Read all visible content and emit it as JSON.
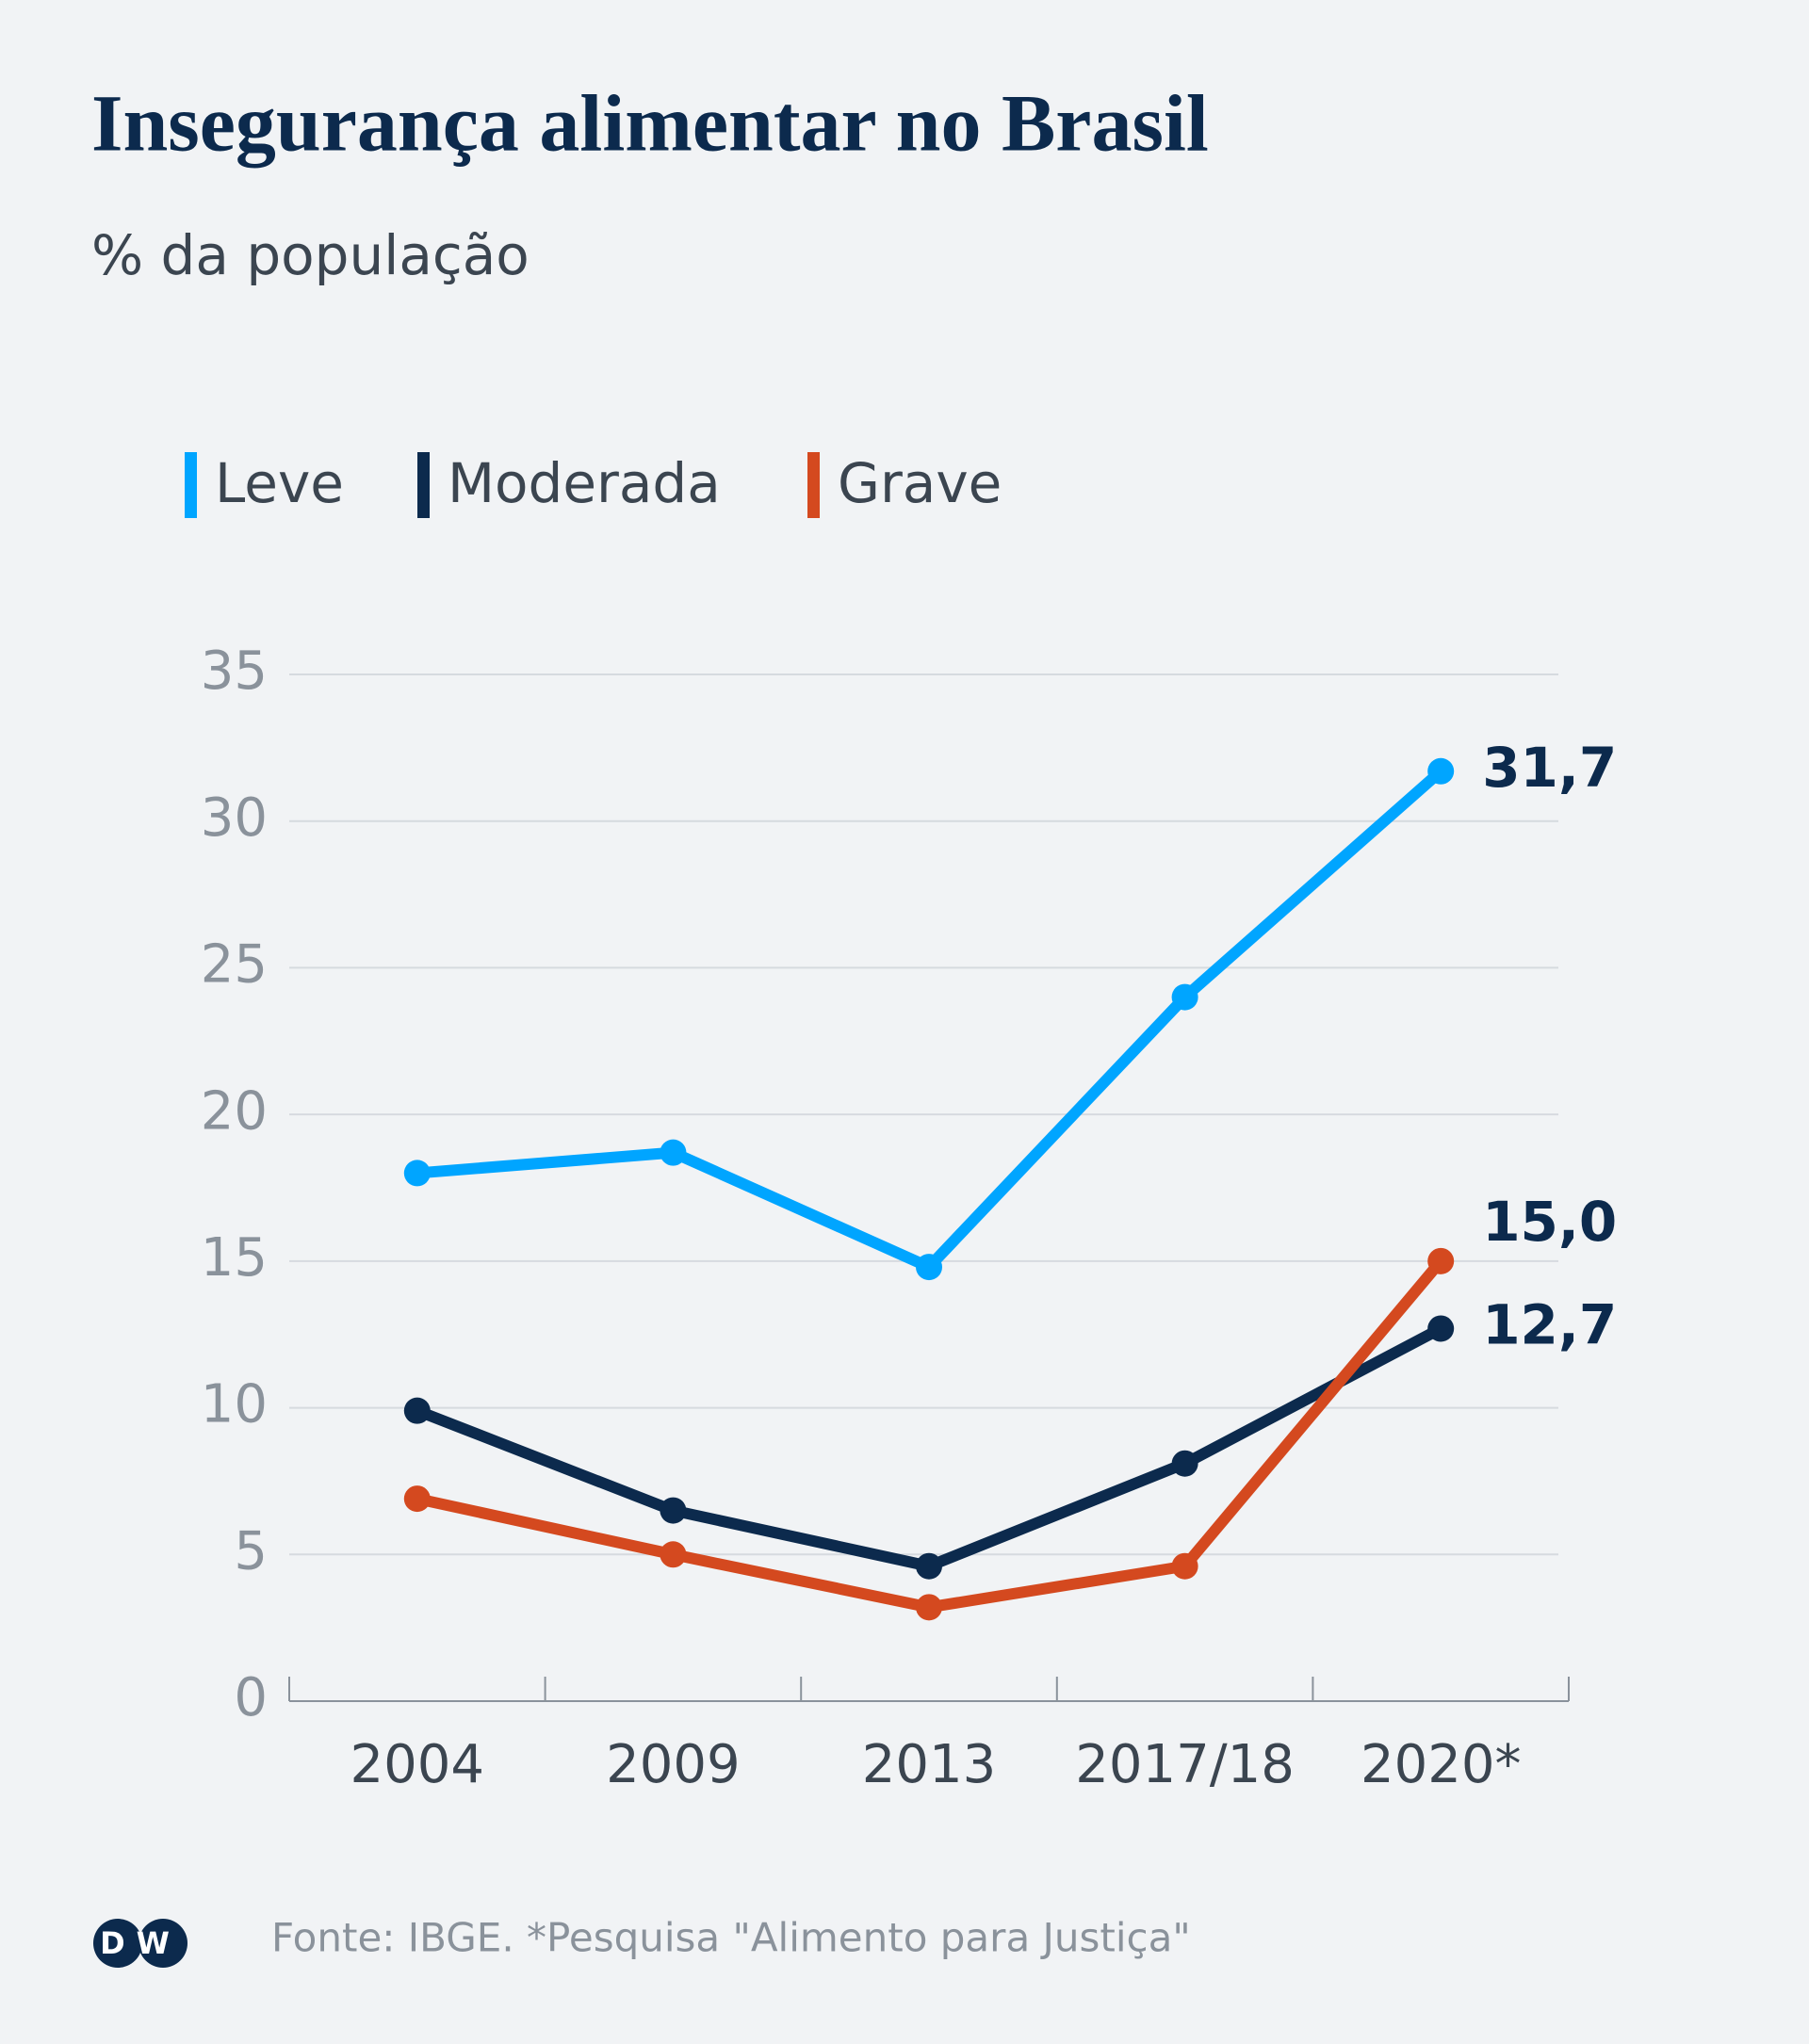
{
  "chart_data": {
    "type": "line",
    "title": "Insegurança alimentar no Brasil",
    "subtitle": "% da população",
    "categories": [
      "2004",
      "2009",
      "2013",
      "2017/18",
      "2020*"
    ],
    "series": [
      {
        "name": "Leve",
        "color": "#00a5ff",
        "values": [
          18.0,
          18.7,
          14.8,
          24.0,
          31.7
        ],
        "value_labels": [
          null,
          null,
          null,
          null,
          "31,7"
        ]
      },
      {
        "name": "Moderada",
        "color": "#0c2a4d",
        "values": [
          9.9,
          6.5,
          4.6,
          8.1,
          12.7
        ],
        "value_labels": [
          null,
          null,
          null,
          null,
          "12,7"
        ]
      },
      {
        "name": "Grave",
        "color": "#d4491f",
        "values": [
          6.9,
          5.0,
          3.2,
          4.6,
          15.0
        ],
        "value_labels": [
          null,
          null,
          null,
          null,
          "15,0"
        ]
      }
    ],
    "ylim": [
      0,
      35
    ],
    "yticks": [
      0,
      5,
      10,
      15,
      20,
      25,
      30,
      35
    ],
    "grid": true,
    "legend": "top",
    "logo": "DW",
    "source": "Fonte: IBGE. *Pesquisa \"Alimento para Justiça\""
  }
}
